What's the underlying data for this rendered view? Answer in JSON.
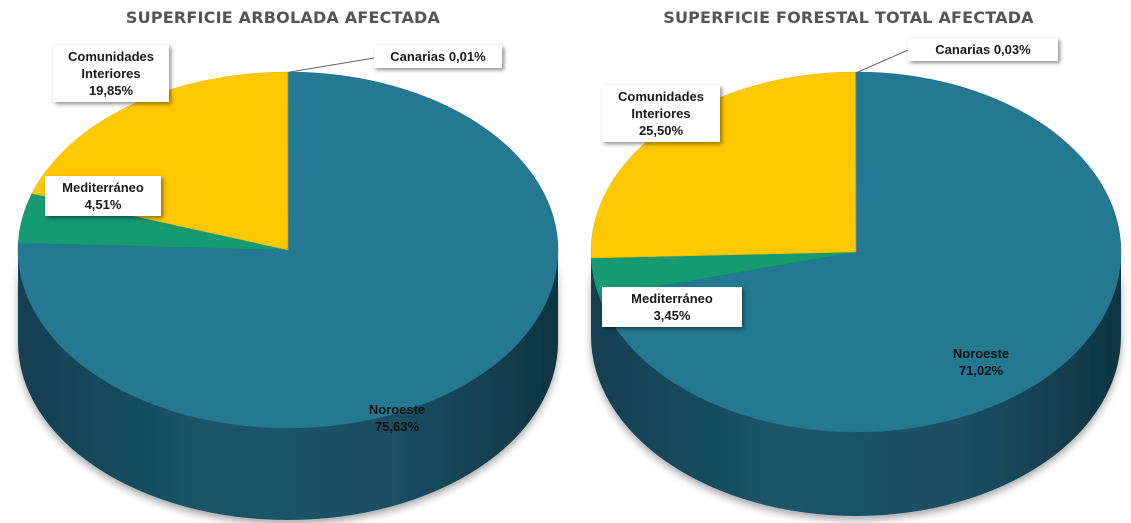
{
  "chart_data": [
    {
      "type": "pie",
      "title": "SUPERFICIE ARBOLADA AFECTADA",
      "slices": [
        {
          "key": "noroeste",
          "lines": [
            "Noroeste"
          ],
          "pct_label": "75,63%",
          "value": 75.63,
          "color": "#257891"
        },
        {
          "key": "mediterraneo",
          "lines": [
            "Mediterráneo"
          ],
          "pct_label": "4,51%",
          "value": 4.51,
          "color": "#159a72"
        },
        {
          "key": "interiores",
          "lines": [
            "Comunidades",
            "Interiores"
          ],
          "pct_label": "19,85%",
          "value": 19.85,
          "color": "#ffc800"
        },
        {
          "key": "canarias",
          "lines": [
            "Canarias 0,01%"
          ],
          "pct_label": "",
          "value": 0.01,
          "color": "#7da7b8"
        }
      ]
    },
    {
      "type": "pie",
      "title": "SUPERFICIE FORESTAL TOTAL AFECTADA",
      "slices": [
        {
          "key": "noroeste",
          "lines": [
            "Noroeste"
          ],
          "pct_label": "71,02%",
          "value": 71.02,
          "color": "#257891"
        },
        {
          "key": "mediterraneo",
          "lines": [
            "Mediterráneo"
          ],
          "pct_label": "3,45%",
          "value": 3.45,
          "color": "#159a72"
        },
        {
          "key": "interiores",
          "lines": [
            "Comunidades",
            "Interiores"
          ],
          "pct_label": "25,50%",
          "value": 25.5,
          "color": "#ffc800"
        },
        {
          "key": "canarias",
          "lines": [
            "Canarias 0,03%"
          ],
          "pct_label": "",
          "value": 0.03,
          "color": "#7da7b8"
        }
      ]
    }
  ]
}
